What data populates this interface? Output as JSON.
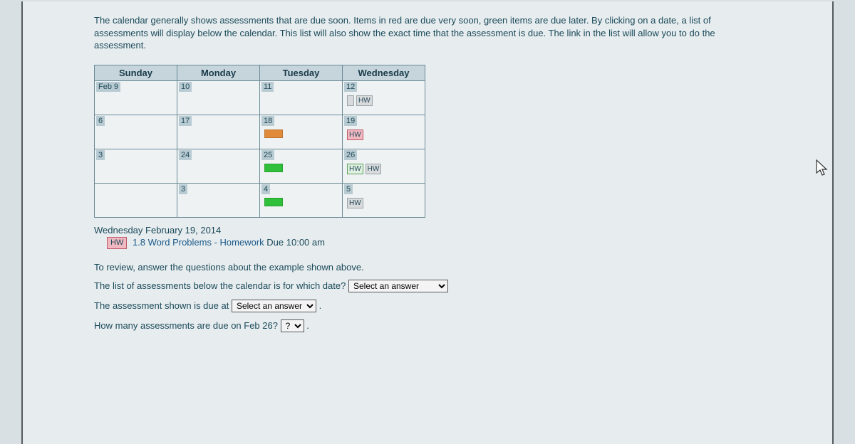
{
  "intro": "The calendar generally shows assessments that are due soon. Items in red are due very soon, green items are due later. By clicking on a date, a list of assessments will display below the calendar. This list will also show the exact time that the assessment is due. The link in the list will allow you to do the assessment.",
  "days": [
    "Sunday",
    "Monday",
    "Tuesday",
    "Wednesday"
  ],
  "colors": {
    "header_bg": "#c5d5db",
    "border": "#6a8a96",
    "daynum_bg": "#b8cbd3",
    "cell_bg": "#eef2f3",
    "swatch_orange": "#e08a3a",
    "swatch_green": "#2fbf3a",
    "hw_red_bg": "#f0b8c0",
    "hw_grey_bg": "#d8dadb",
    "hw_border_red": "#c05a6a",
    "hw_border_grey": "#9aa6aa",
    "text": "#1a4a5a",
    "link": "#1a5a8a",
    "hw_green_bg": "#e0f0e0",
    "hw_green_border": "#5aa05a"
  },
  "rows": [
    [
      {
        "num": "Feb 9",
        "tags": []
      },
      {
        "num": "10",
        "tags": []
      },
      {
        "num": "11",
        "tags": []
      },
      {
        "num": "12",
        "tags": [
          {
            "kind": "grey",
            "label": ""
          },
          {
            "kind": "grey",
            "label": "HW"
          }
        ]
      }
    ],
    [
      {
        "num": "6",
        "tags": []
      },
      {
        "num": "17",
        "tags": []
      },
      {
        "num": "18",
        "tags": [
          {
            "kind": "swatch-orange",
            "label": ""
          }
        ]
      },
      {
        "num": "19",
        "tags": [
          {
            "kind": "red",
            "label": "HW"
          }
        ]
      }
    ],
    [
      {
        "num": "3",
        "tags": []
      },
      {
        "num": "24",
        "tags": []
      },
      {
        "num": "25",
        "tags": [
          {
            "kind": "swatch-green",
            "label": ""
          }
        ]
      },
      {
        "num": "26",
        "tags": [
          {
            "kind": "green",
            "label": "HW"
          },
          {
            "kind": "grey",
            "label": "HW"
          }
        ]
      }
    ],
    [
      {
        "num": "",
        "tags": []
      },
      {
        "num": "3",
        "tags": []
      },
      {
        "num": "4",
        "tags": [
          {
            "kind": "swatch-green",
            "label": ""
          }
        ]
      },
      {
        "num": "5",
        "tags": [
          {
            "kind": "grey",
            "label": "HW"
          }
        ]
      }
    ]
  ],
  "selected_date": "Wednesday February 19, 2014",
  "assessment": {
    "badge": "HW",
    "badge_bg": "#f0b8c0",
    "link_text": "1.8 Word Problems - Homework",
    "due_text": "Due 10:00 am"
  },
  "review_intro": "To review, answer the questions about the example shown above.",
  "q1_text": "The list of assessments below the calendar is for which date?",
  "q1_placeholder": "Select an answer",
  "q2_text_before": "The assessment shown is due at",
  "q2_placeholder": "Select an answer",
  "q2_after": ".",
  "q3_text": "How many assessments are due on Feb 26?",
  "q3_placeholder": "?",
  "q3_after": "."
}
